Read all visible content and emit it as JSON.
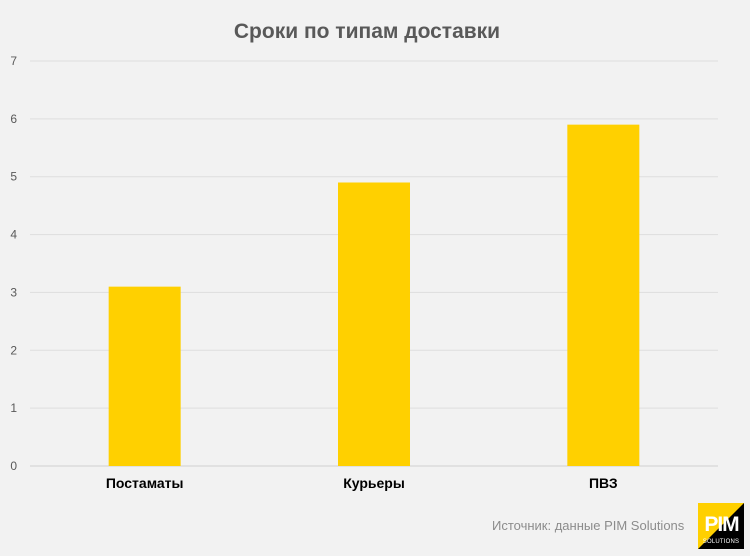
{
  "chart_data": {
    "type": "bar",
    "title": "Сроки по типам доставки",
    "categories": [
      "Постаматы",
      "Курьеры",
      "ПВЗ"
    ],
    "values": [
      3.1,
      4.9,
      5.9
    ],
    "ylim": [
      0,
      7
    ],
    "yticks": [
      0,
      1,
      2,
      3,
      4,
      5,
      6,
      7
    ],
    "xlabel": "",
    "ylabel": "",
    "grid": true,
    "bar_color": "#ffd000"
  },
  "source": "Источник: данные PIM Solutions",
  "logo": {
    "main": "PIM",
    "sub": "SOLUTIONS",
    "accent": "#ffd000"
  }
}
